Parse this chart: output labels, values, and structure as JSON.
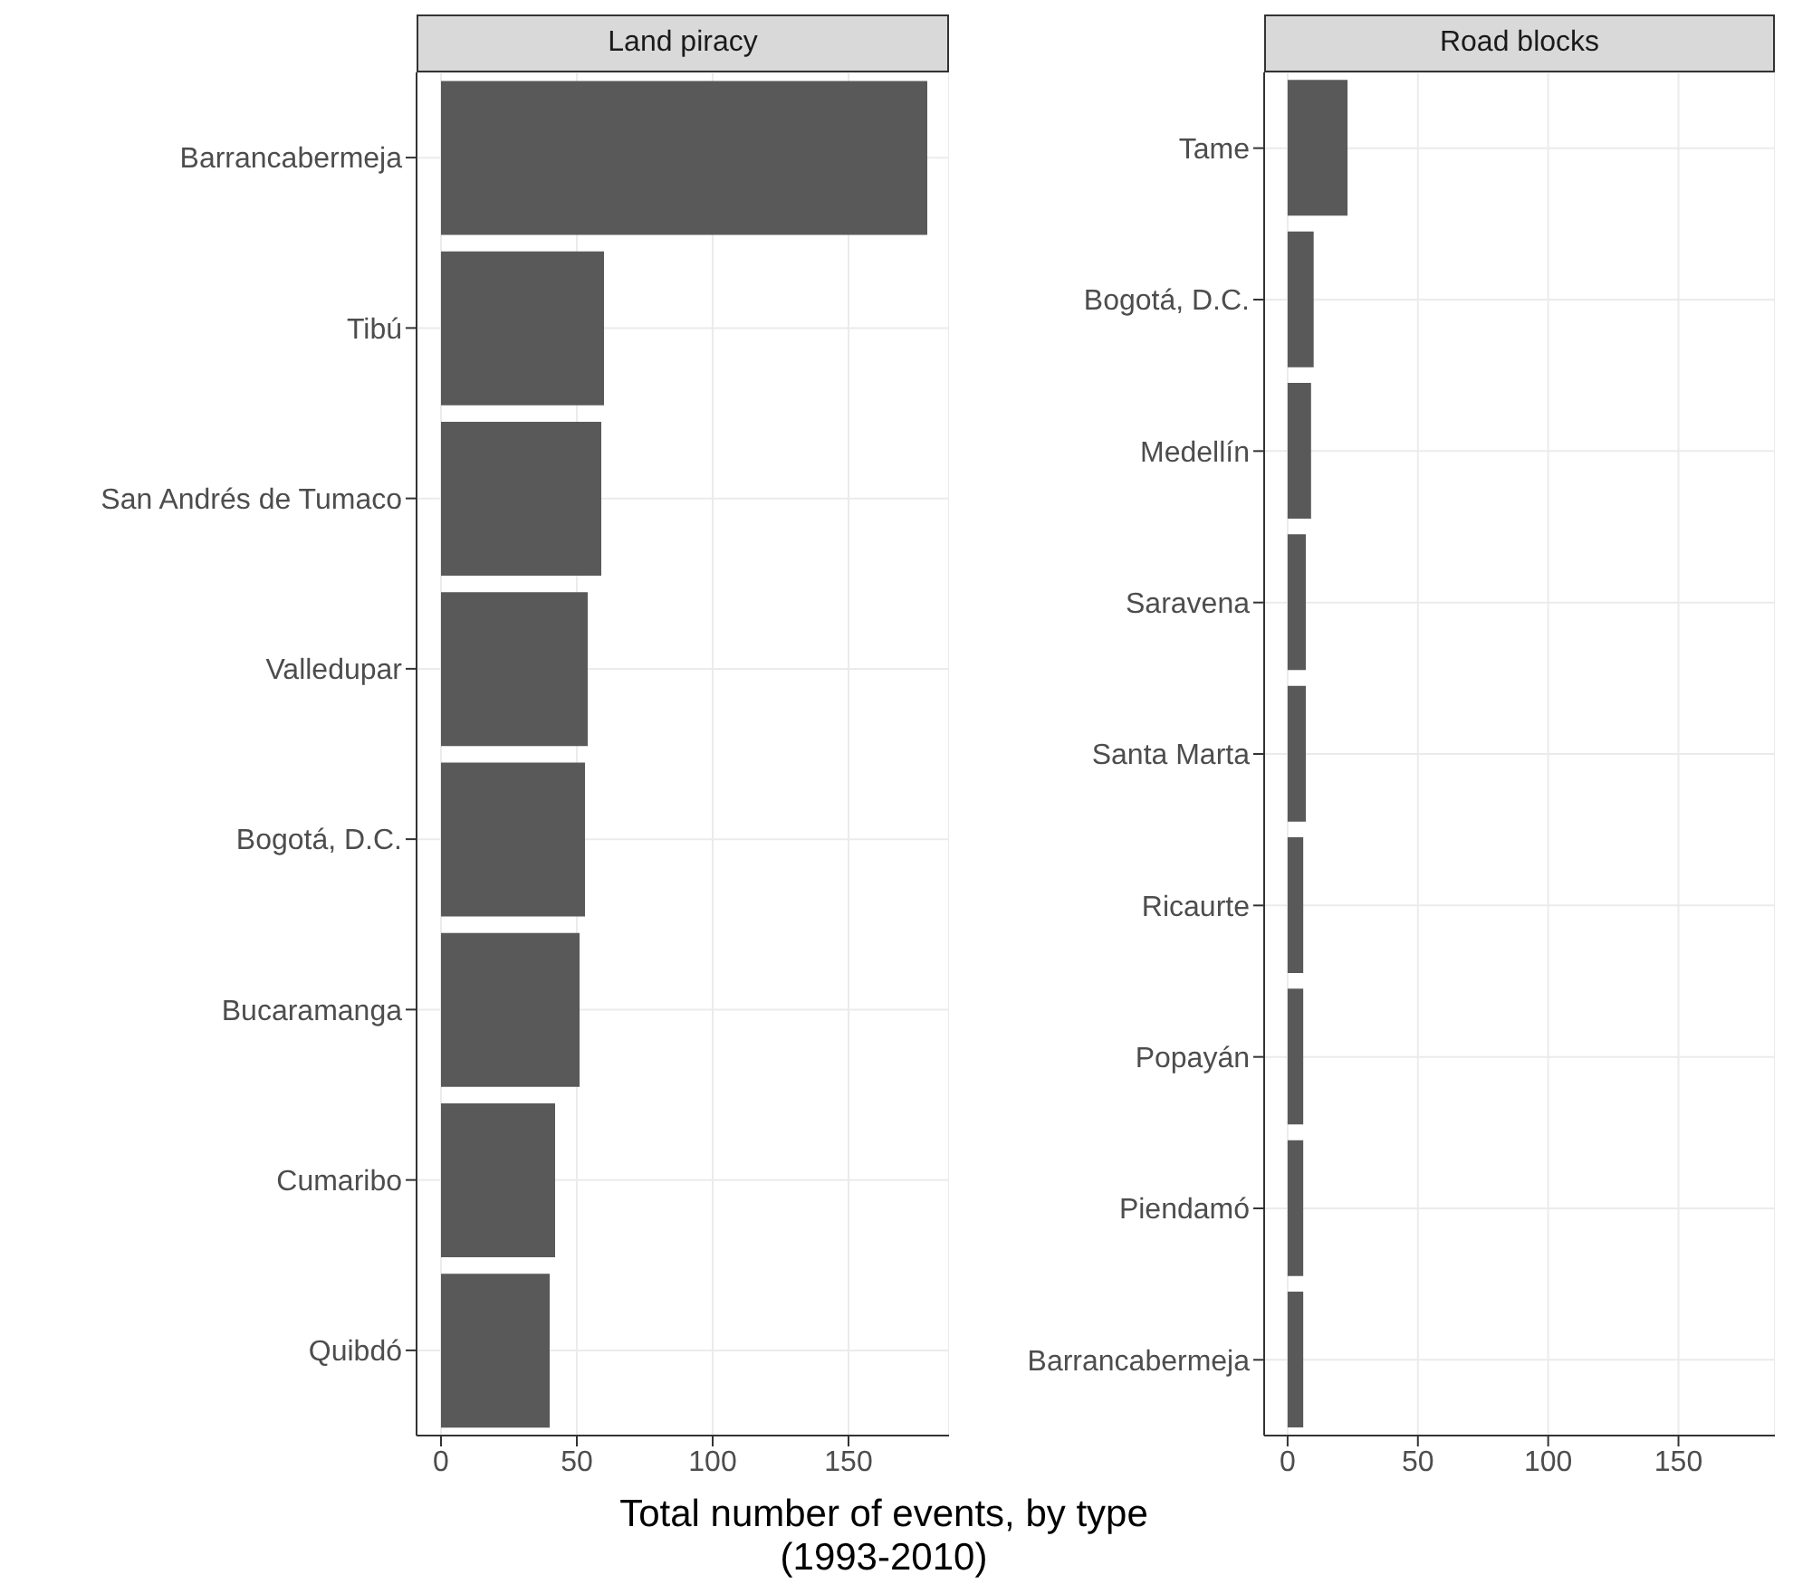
{
  "chart_data": [
    {
      "type": "bar",
      "orientation": "horizontal",
      "title": "Land piracy",
      "xlabel": "Total number of events, by type\n(1993-2010)",
      "categories": [
        "Barrancabermeja",
        "Tibú",
        "San Andrés de Tumaco",
        "Valledupar",
        "Bogotá, D.C.",
        "Bucaramanga",
        "Cumaribo",
        "Quibdó"
      ],
      "values": [
        179,
        60,
        59,
        54,
        53,
        51,
        42,
        40
      ],
      "color": "#595959",
      "xlim": [
        -9,
        187
      ],
      "xticks": [
        0,
        50,
        100,
        150
      ],
      "grid": true
    },
    {
      "type": "bar",
      "orientation": "horizontal",
      "title": "Road blocks",
      "categories": [
        "Tame",
        "Bogotá, D.C.",
        "Medellín",
        "Saravena",
        "Santa Marta",
        "Ricaurte",
        "Popayán",
        "Piendamó",
        "Barrancabermeja"
      ],
      "values": [
        23,
        10,
        9,
        7,
        7,
        6,
        6,
        6,
        6
      ],
      "color": "#595959",
      "xlim": [
        -9,
        187
      ],
      "xticks": [
        0,
        50,
        100,
        150
      ],
      "grid": true
    }
  ]
}
